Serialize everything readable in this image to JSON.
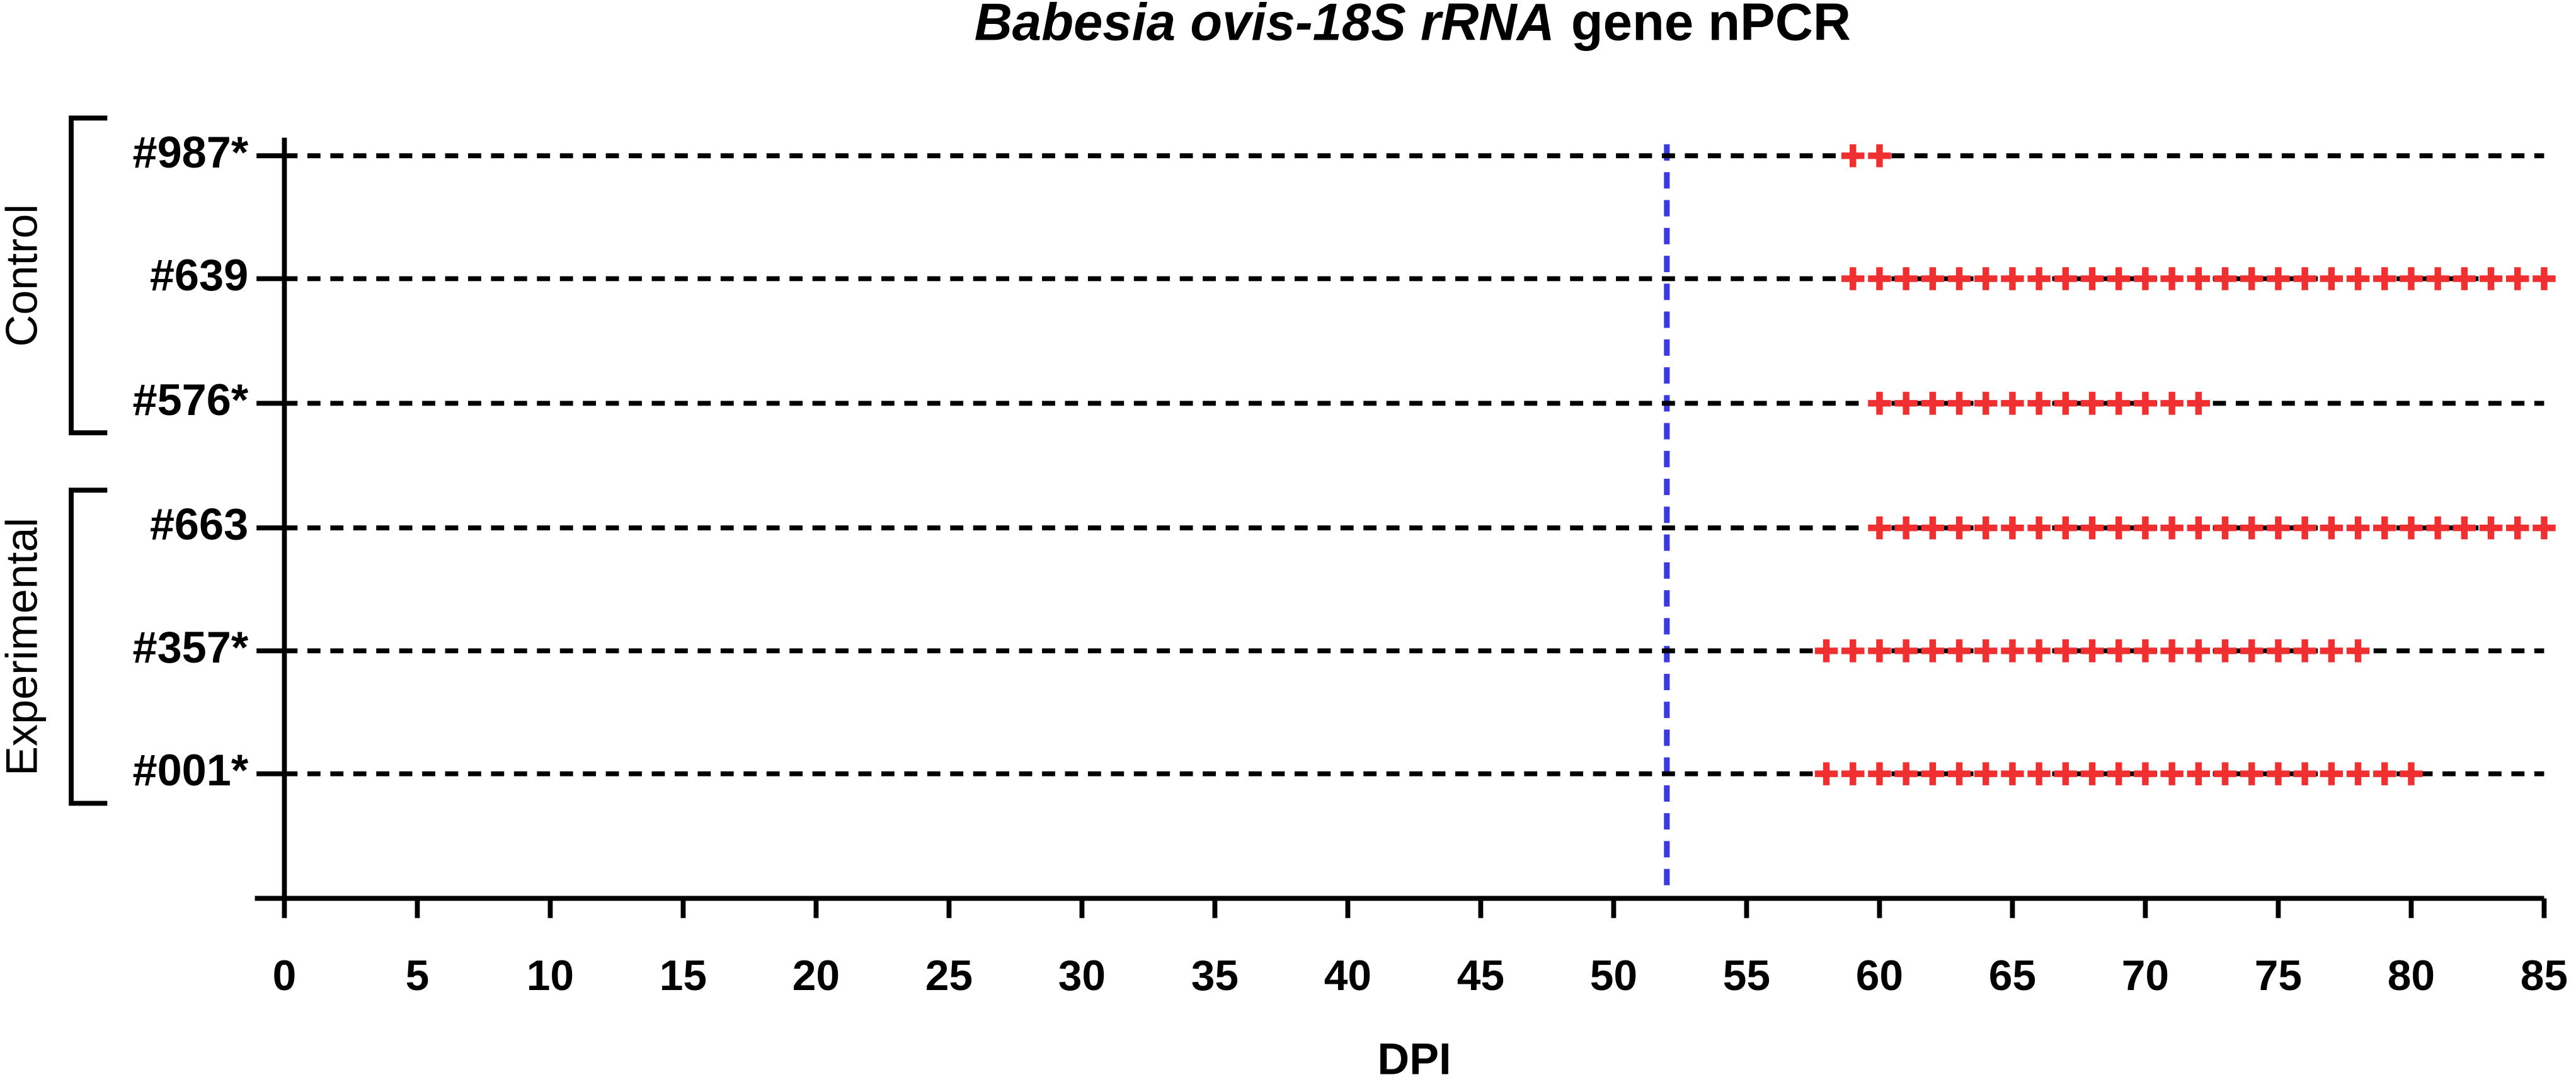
{
  "chart_data": {
    "type": "scatter",
    "title": [
      {
        "text": "Babesia ovis-18S rRNA",
        "italic": true
      },
      {
        "text": "gene  nPCR",
        "italic": false
      }
    ],
    "xlabel": "DPI",
    "xlim": [
      0,
      85
    ],
    "xticks": [
      0,
      5,
      10,
      15,
      20,
      25,
      30,
      35,
      40,
      45,
      50,
      55,
      60,
      65,
      70,
      75,
      80,
      85
    ],
    "vline": 52,
    "vline_color": "#3a3ae0",
    "marker_color": "#f03030",
    "groups": [
      {
        "label": "Control",
        "rows": [
          {
            "name": "#987*",
            "x": [
              59,
              60
            ]
          },
          {
            "name": "#639",
            "x": [
              59,
              60,
              61,
              62,
              63,
              64,
              65,
              66,
              67,
              68,
              69,
              70,
              71,
              72,
              73,
              74,
              75,
              76,
              77,
              78,
              79,
              80,
              81,
              82,
              83,
              84,
              85
            ]
          },
          {
            "name": "#576*",
            "x": [
              60,
              61,
              62,
              63,
              64,
              65,
              66,
              67,
              68,
              69,
              70,
              71,
              72
            ]
          }
        ]
      },
      {
        "label": "Experimental",
        "rows": [
          {
            "name": "#663",
            "x": [
              60,
              61,
              62,
              63,
              64,
              65,
              66,
              67,
              68,
              69,
              70,
              71,
              72,
              73,
              74,
              75,
              76,
              77,
              78,
              79,
              80,
              81,
              82,
              83,
              84,
              85
            ]
          },
          {
            "name": "#357*",
            "x": [
              58,
              59,
              60,
              61,
              62,
              63,
              64,
              65,
              66,
              67,
              68,
              69,
              70,
              71,
              72,
              73,
              74,
              75,
              76,
              77,
              78
            ]
          },
          {
            "name": "#001*",
            "x": [
              58,
              59,
              60,
              61,
              62,
              63,
              64,
              65,
              66,
              67,
              68,
              69,
              70,
              71,
              72,
              73,
              74,
              75,
              76,
              77,
              78,
              79,
              80
            ]
          }
        ]
      }
    ]
  }
}
